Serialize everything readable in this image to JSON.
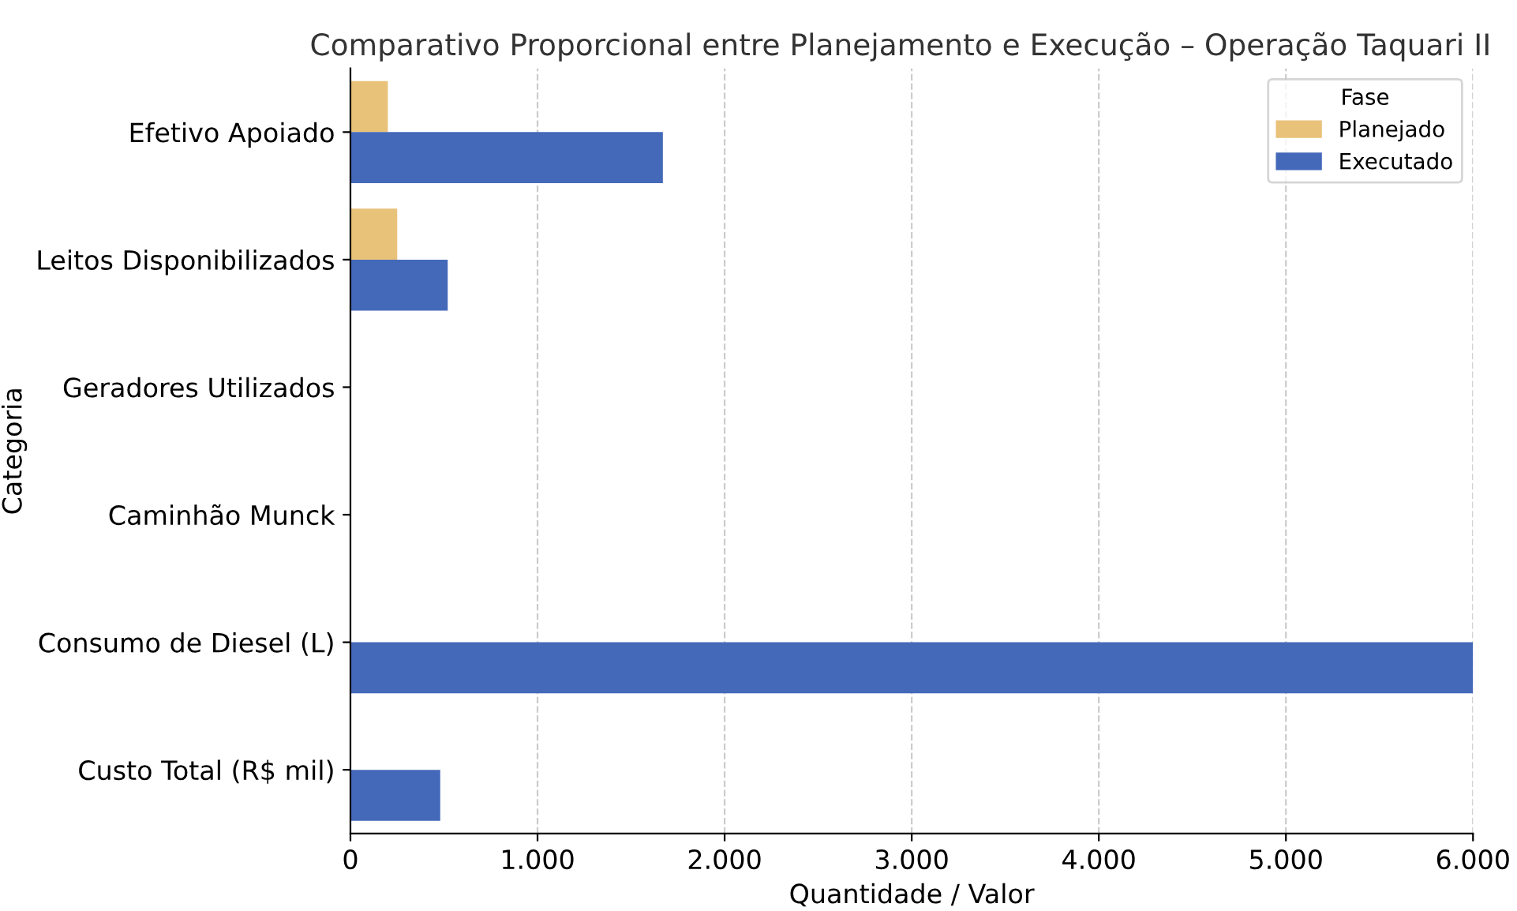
{
  "chart_data": {
    "type": "bar",
    "orientation": "horizontal",
    "title": "Comparativo Proporcional entre Planejamento e Execução – Operação Taquari II",
    "xlabel": "Quantidade / Valor",
    "ylabel": "Categoria",
    "legend_title": "Fase",
    "legend": "top right",
    "grid": "x",
    "categories": [
      "Efetivo Apoiado",
      "Leitos Disponibilizados",
      "Geradores Utilizados",
      "Caminhão Munck",
      "Consumo de Diesel (L)",
      "Custo Total (R$ mil)"
    ],
    "series": [
      {
        "name": "Planejado",
        "color": "#e9c27a",
        "values": [
          200,
          250,
          0,
          0,
          0,
          0
        ]
      },
      {
        "name": "Executado",
        "color": "#4569b9",
        "values": [
          1670,
          520,
          0,
          0,
          6000,
          480
        ]
      }
    ],
    "xlim": [
      0,
      6000
    ],
    "xticks": [
      0,
      {
        "value": 1000,
        "label": "1.000"
      },
      {
        "value": 2000,
        "label": "2.000"
      },
      {
        "value": 3000,
        "label": "3.000"
      },
      {
        "value": 4000,
        "label": "4.000"
      },
      {
        "value": 5000,
        "label": "5.000"
      },
      {
        "value": 6000,
        "label": "6.000"
      }
    ]
  }
}
